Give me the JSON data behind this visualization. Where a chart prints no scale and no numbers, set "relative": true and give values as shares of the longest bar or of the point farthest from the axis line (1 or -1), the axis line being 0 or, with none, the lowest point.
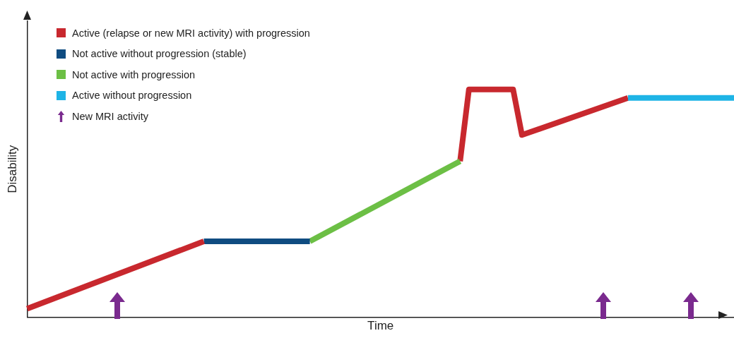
{
  "chart_data": {
    "type": "line",
    "relative": true,
    "xlabel": "Time",
    "ylabel": "Disability",
    "grid": false,
    "legend": "top left",
    "marker": "none",
    "line_style": "solid",
    "categories": [
      null,
      null,
      null,
      null,
      null,
      null,
      null,
      null,
      null,
      null,
      null,
      null,
      null,
      null,
      null,
      null,
      null,
      null,
      null,
      null,
      null,
      null,
      null,
      null,
      null,
      null,
      null,
      null,
      null,
      null,
      null,
      null,
      null,
      null,
      null,
      null,
      null,
      null,
      null,
      null,
      null,
      null,
      null,
      null,
      null,
      null,
      null,
      null,
      null,
      null,
      null,
      null,
      null,
      null,
      null,
      null,
      null,
      null,
      null,
      null,
      null,
      null,
      null,
      null,
      null,
      null,
      null,
      null,
      null,
      null,
      null,
      null,
      null,
      null,
      null,
      null,
      null,
      null,
      null,
      null,
      null
    ],
    "annotations": [
      "New MRI activity"
    ],
    "series": [
      {
        "name": "Active (relapse or new MRI activity) with progression",
        "color": "#c8282e",
        "values": [
          0.037,
          null,
          null,
          null,
          null,
          null,
          null,
          null,
          null,
          null,
          null,
          null,
          null,
          null,
          null,
          null,
          null,
          null,
          null,
          null,
          0.333,
          null,
          null,
          null,
          null,
          null,
          null,
          null,
          null,
          null,
          null,
          null,
          null,
          null,
          null,
          null,
          null,
          null,
          null,
          null,
          null,
          null,
          null,
          null,
          null,
          null,
          null,
          null,
          null,
          null,
          null,
          null,
          null,
          null,
          null,
          null,
          null,
          null,
          null,
          null,
          null,
          null,
          null,
          null,
          null,
          null,
          null,
          null,
          null,
          null,
          null,
          null,
          null,
          null,
          null,
          null,
          null,
          null,
          null,
          null,
          null
        ]
      },
      {
        "name": "Not active without progression (stable)",
        "color": "#0f4c81",
        "values": [
          null,
          null,
          null,
          null,
          null,
          null,
          null,
          null,
          null,
          null,
          null,
          null,
          null,
          null,
          null,
          null,
          null,
          null,
          null,
          null,
          0.333,
          null,
          null,
          null,
          null,
          null,
          null,
          null,
          null,
          null,
          null,
          null,
          0.333,
          null,
          null,
          null,
          null,
          null,
          null,
          null,
          null,
          null,
          null,
          null,
          null,
          null,
          null,
          null,
          null,
          null,
          null,
          null,
          null,
          null,
          null,
          null,
          null,
          null,
          null,
          null,
          null,
          null,
          null,
          null,
          null,
          null,
          null,
          null,
          null,
          null,
          null,
          null,
          null,
          null,
          null,
          null,
          null,
          null,
          null,
          null,
          null
        ]
      },
      {
        "name": "Not active with progression",
        "color": "#6cbf45",
        "values": [
          null,
          null,
          null,
          null,
          null,
          null,
          null,
          null,
          null,
          null,
          null,
          null,
          null,
          null,
          null,
          null,
          null,
          null,
          null,
          null,
          null,
          null,
          null,
          null,
          null,
          null,
          null,
          null,
          null,
          null,
          null,
          null,
          0.333,
          null,
          null,
          null,
          null,
          null,
          null,
          null,
          null,
          null,
          null,
          null,
          null,
          null,
          null,
          null,
          null,
          0.685,
          null,
          null,
          null,
          null,
          null,
          null,
          null,
          null,
          null,
          null,
          null,
          null,
          null,
          null,
          null,
          null,
          null,
          null,
          null,
          null,
          null,
          null,
          null,
          null,
          null,
          null,
          null,
          null,
          null,
          null,
          null
        ]
      },
      {
        "name": "Active without progression",
        "color": "#1eb4e6",
        "values": [
          null,
          null,
          null,
          null,
          null,
          null,
          null,
          null,
          null,
          null,
          null,
          null,
          null,
          null,
          null,
          null,
          null,
          null,
          null,
          null,
          null,
          null,
          null,
          null,
          null,
          null,
          null,
          null,
          null,
          null,
          null,
          null,
          null,
          null,
          null,
          null,
          null,
          null,
          null,
          null,
          null,
          null,
          null,
          null,
          null,
          null,
          null,
          null,
          null,
          null,
          null,
          null,
          null,
          null,
          null,
          null,
          null,
          null,
          null,
          null,
          null,
          null,
          null,
          null,
          null,
          null,
          null,
          null,
          0.963,
          null,
          null,
          null,
          null,
          null,
          null,
          null,
          null,
          null,
          null,
          null,
          0.963
        ]
      },
      {
        "color": "#c8282e",
        "values": [
          null,
          null,
          null,
          null,
          null,
          null,
          null,
          null,
          null,
          null,
          null,
          null,
          null,
          null,
          null,
          null,
          null,
          null,
          null,
          null,
          null,
          null,
          null,
          null,
          null,
          null,
          null,
          null,
          null,
          null,
          null,
          null,
          null,
          null,
          null,
          null,
          null,
          null,
          null,
          null,
          null,
          null,
          null,
          null,
          null,
          null,
          null,
          null,
          null,
          0.685,
          1,
          null,
          null,
          null,
          null,
          1,
          0.8,
          null,
          null,
          null,
          null,
          null,
          null,
          null,
          null,
          null,
          null,
          null,
          0.963,
          null,
          null,
          null,
          null,
          null,
          null,
          null,
          null,
          null,
          null,
          null,
          null
        ]
      }
    ]
  }
}
